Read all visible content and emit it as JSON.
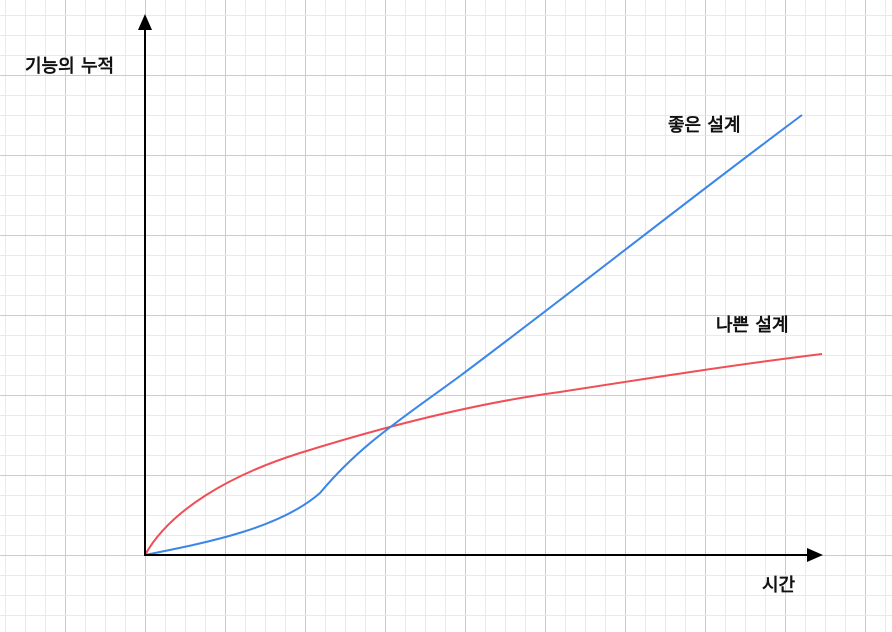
{
  "diagram": {
    "y_axis_label": "기능의 누적",
    "x_axis_label": "시간",
    "good_design_label": "좋은 설계",
    "bad_design_label": "나쁜 설계"
  },
  "colors": {
    "good_design": "#3b86e8",
    "bad_design": "#ef4f55",
    "axis": "#000000",
    "grid_minor": "#e9e9e9",
    "grid_major": "#cccccc"
  }
}
